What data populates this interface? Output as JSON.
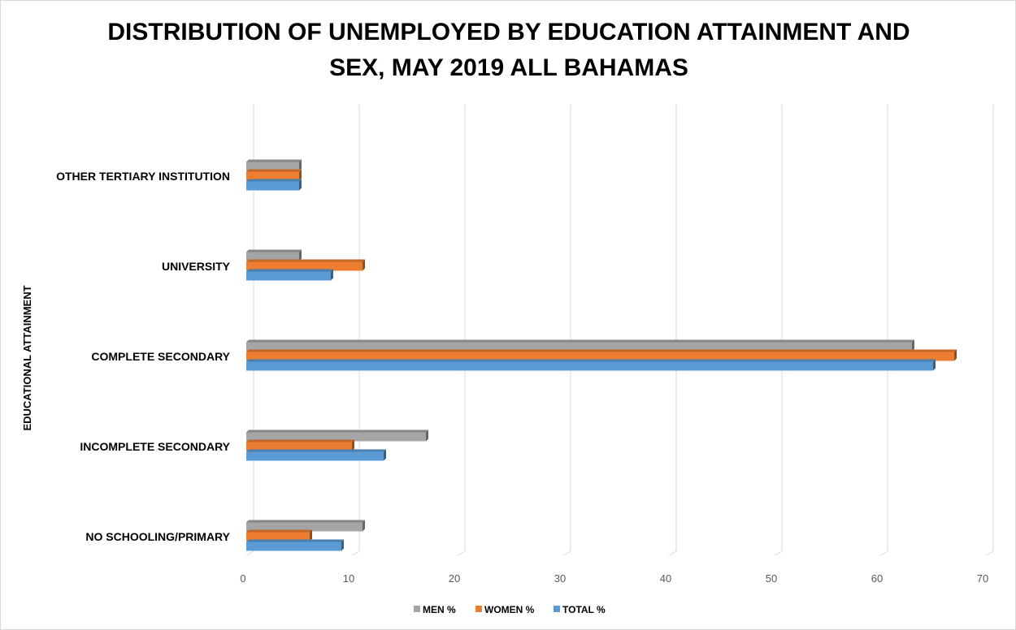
{
  "chart_data": {
    "type": "bar",
    "orientation": "horizontal",
    "style": "3d-clustered",
    "title_lines": [
      "DISTRIBUTION OF UNEMPLOYED BY EDUCATION ATTAINMENT AND",
      "SEX, MAY 2019 ALL BAHAMAS"
    ],
    "ylabel": "EDUCATIONAL ATTAINMENT",
    "xlabel": "",
    "categories": [
      "OTHER TERTIARY INSTITUTION",
      "UNIVERSITY",
      "COMPLETE SECONDARY",
      "INCOMPLETE SECONDARY",
      "NO SCHOOLING/PRIMARY"
    ],
    "series": [
      {
        "name": "MEN %",
        "color": "#a5a5a5",
        "values": [
          5,
          5,
          63,
          17,
          11
        ]
      },
      {
        "name": "WOMEN %",
        "color": "#ed7d31",
        "values": [
          5,
          11,
          67,
          10,
          6
        ]
      },
      {
        "name": "TOTAL %",
        "color": "#5b9bd5",
        "values": [
          5,
          8,
          65,
          13,
          9
        ]
      }
    ],
    "xlim": [
      0,
      70
    ],
    "xticks": [
      "0",
      "10",
      "20",
      "30",
      "40",
      "50",
      "60",
      "70"
    ],
    "grid": true,
    "legend_position": "bottom"
  }
}
